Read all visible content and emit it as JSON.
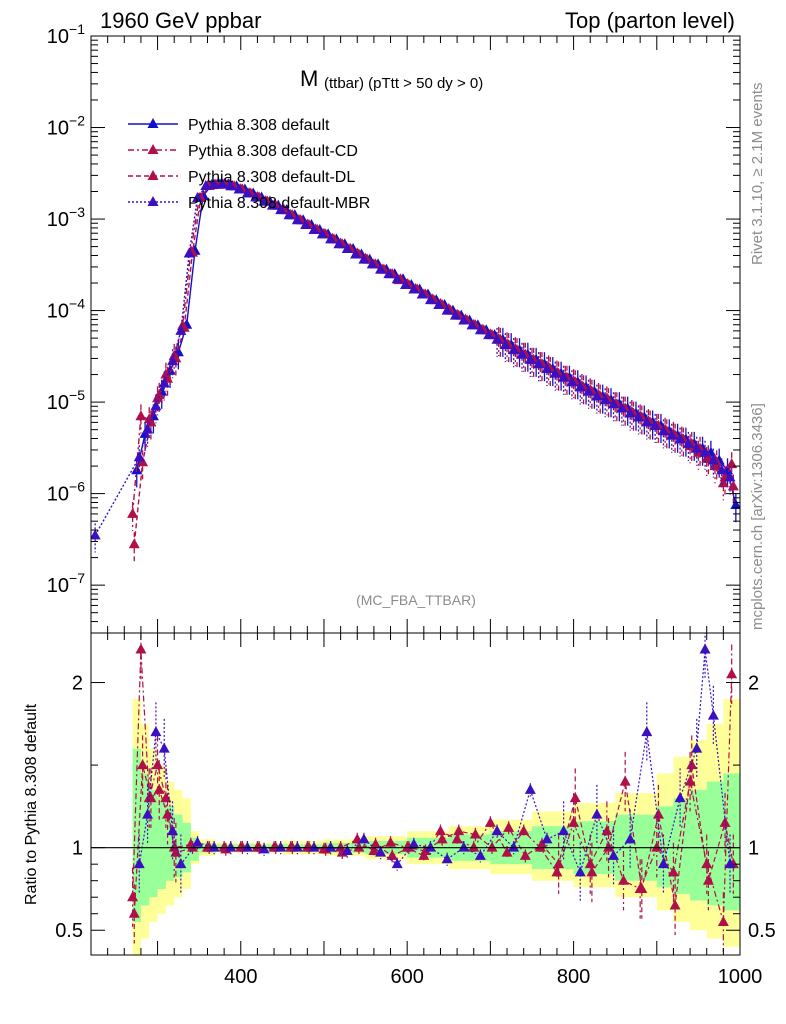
{
  "header": {
    "left": "1960 GeV ppbar",
    "right": "Top (parton level)"
  },
  "side": {
    "rivet": "Rivet 3.1.10, ≥ 2.1M events",
    "mcplots": "mcplots.cern.ch [arXiv:1306.3436]"
  },
  "colors": {
    "default": "#1010cc",
    "cd": "#b0104a",
    "dl": "#b0104a",
    "mbr": "#3a10c0",
    "band_outer": "#ffff99",
    "band_inner": "#99ff99"
  },
  "chart_data": [
    {
      "type": "line",
      "title_main": "M",
      "title_sub": "(ttbar) (pTtt > 50 dy > 0)",
      "watermark": "(MC_FBA_TTBAR)",
      "yscale": "log",
      "ylim": [
        3e-08,
        0.1
      ],
      "xlim": [
        220,
        1000
      ],
      "ytick_labels": [
        "10−1",
        "10−2",
        "10−3",
        "10−4",
        "10−5",
        "10−6",
        "10−7"
      ],
      "legend_position": "top-left",
      "series": [
        {
          "name": "Pythia 8.308 default",
          "style": "solid",
          "x": [
            275,
            285,
            295,
            305,
            315,
            325,
            335,
            345,
            355,
            365,
            375,
            385,
            395,
            405,
            415,
            425,
            435,
            445,
            455,
            465,
            475,
            485,
            495,
            505,
            515,
            525,
            535,
            545,
            555,
            565,
            575,
            585,
            595,
            605,
            615,
            625,
            635,
            645,
            655,
            665,
            675,
            685,
            695,
            705,
            715,
            725,
            735,
            745,
            755,
            765,
            775,
            785,
            795,
            805,
            815,
            825,
            835,
            845,
            855,
            865,
            875,
            885,
            895,
            905,
            915,
            925,
            935,
            945,
            955,
            965,
            975,
            985,
            995
          ],
          "y": [
            1.8e-06,
            4.5e-06,
            7e-06,
            1.3e-05,
            2.2e-05,
            3.5e-05,
            7e-05,
            0.00045,
            0.0018,
            0.00235,
            0.0024,
            0.0024,
            0.00228,
            0.0021,
            0.0019,
            0.00172,
            0.00155,
            0.0014,
            0.00125,
            0.0011,
            0.00097,
            0.00086,
            0.00076,
            0.00068,
            0.0006,
            0.00053,
            0.00047,
            0.00041,
            0.00036,
            0.00032,
            0.00028,
            0.00025,
            0.00022,
            0.00019,
            0.00017,
            0.00015,
            0.00013,
            0.000115,
            0.0001,
            8.8e-05,
            7.8e-05,
            6.9e-05,
            6.1e-05,
            5.4e-05,
            4.8e-05,
            4.2e-05,
            3.7e-05,
            3.3e-05,
            2.9e-05,
            2.6e-05,
            2.3e-05,
            2.05e-05,
            1.85e-05,
            1.65e-05,
            1.45e-05,
            1.3e-05,
            1.15e-05,
            1.05e-05,
            9.5e-06,
            8.5e-06,
            7.5e-06,
            6.8e-06,
            6e-06,
            5.5e-06,
            4.8e-06,
            4.3e-06,
            3.9e-06,
            3.5e-06,
            3.1e-06,
            2.8e-06,
            2.3e-06,
            1.8e-06,
            7.5e-07
          ]
        },
        {
          "name": "Pythia 8.308 default-CD",
          "style": "dashdot",
          "x": [
            270,
            280,
            290,
            300,
            310,
            320,
            330,
            340,
            350,
            360,
            370,
            380,
            390,
            400,
            410,
            420,
            430,
            440,
            450,
            460,
            470,
            480,
            490,
            500,
            510,
            520,
            530,
            540,
            550,
            560,
            570,
            580,
            590,
            600,
            610,
            620,
            630,
            640,
            650,
            660,
            670,
            680,
            690,
            700,
            710,
            720,
            730,
            740,
            750,
            760,
            770,
            780,
            790,
            800,
            810,
            820,
            830,
            840,
            850,
            860,
            870,
            880,
            890,
            900,
            910,
            920,
            930,
            940,
            950,
            960,
            970,
            980,
            990
          ],
          "y": [
            6e-07,
            7e-06,
            6.5e-06,
            1.1e-05,
            2e-05,
            3.2e-05,
            6.8e-05,
            0.00044,
            0.0017,
            0.0023,
            0.00238,
            0.0024,
            0.00229,
            0.00212,
            0.00192,
            0.00174,
            0.00157,
            0.00141,
            0.00126,
            0.00111,
            0.00098,
            0.00087,
            0.00077,
            0.00069,
            0.00061,
            0.00054,
            0.00047,
            0.00042,
            0.00037,
            0.00032,
            0.00028,
            0.00025,
            0.000215,
            0.000195,
            0.000172,
            0.00015,
            0.000133,
            0.000118,
            0.000104,
            9e-05,
            8e-05,
            7e-05,
            6.2e-05,
            5.5e-05,
            4.9e-05,
            4.3e-05,
            3.8e-05,
            3.3e-05,
            2.9e-05,
            2.6e-05,
            2.4e-05,
            2.1e-05,
            1.85e-05,
            1.7e-05,
            1.5e-05,
            1.35e-05,
            1.2e-05,
            1.1e-05,
            9.5e-06,
            8.5e-06,
            7.8e-06,
            7e-06,
            6.2e-06,
            5.5e-06,
            5e-06,
            4.5e-06,
            4e-06,
            3.3e-06,
            2.8e-06,
            2.4e-06,
            2e-06,
            1.3e-06,
            2.1e-06
          ]
        },
        {
          "name": "Pythia 8.308 default-DL",
          "style": "dashed",
          "x": [
            272,
            282,
            292,
            302,
            312,
            322,
            332,
            342,
            352,
            362,
            372,
            382,
            392,
            402,
            412,
            422,
            432,
            442,
            452,
            462,
            472,
            482,
            492,
            502,
            512,
            522,
            532,
            542,
            552,
            562,
            572,
            582,
            592,
            602,
            612,
            622,
            632,
            642,
            652,
            662,
            672,
            682,
            692,
            702,
            712,
            722,
            732,
            742,
            752,
            762,
            772,
            782,
            792,
            802,
            812,
            822,
            832,
            842,
            852,
            862,
            872,
            882,
            892,
            902,
            912,
            922,
            932,
            942,
            952,
            962,
            972,
            982,
            992
          ],
          "y": [
            2.8e-07,
            2.2e-06,
            6e-06,
            1.2e-05,
            1.8e-05,
            3e-05,
            6.5e-05,
            0.00043,
            0.0017,
            0.0023,
            0.00238,
            0.00238,
            0.00228,
            0.0021,
            0.0019,
            0.00172,
            0.00155,
            0.0014,
            0.00125,
            0.0011,
            0.00097,
            0.00086,
            0.00076,
            0.00068,
            0.0006,
            0.00053,
            0.00047,
            0.00041,
            0.00036,
            0.00032,
            0.00028,
            0.00025,
            0.00022,
            0.00019,
            0.00017,
            0.00015,
            0.00013,
            0.000115,
            0.0001,
            8.8e-05,
            7.8e-05,
            6.9e-05,
            6.1e-05,
            5.4e-05,
            4.8e-05,
            4.2e-05,
            3.7e-05,
            3.3e-05,
            2.9e-05,
            2.6e-05,
            2.3e-05,
            2.05e-05,
            1.85e-05,
            1.65e-05,
            1.45e-05,
            1.3e-05,
            1.15e-05,
            1.05e-05,
            9.5e-06,
            8.5e-06,
            7.5e-06,
            6.8e-06,
            6e-06,
            5.5e-06,
            4.8e-06,
            4.3e-06,
            3.9e-06,
            3.5e-06,
            3.1e-06,
            2.5e-06,
            2.2e-06,
            1.5e-06,
            1.2e-06
          ]
        },
        {
          "name": "Pythia 8.308 default-MBR",
          "style": "dotted",
          "x": [
            225,
            278,
            288,
            298,
            308,
            318,
            328,
            338,
            348,
            358,
            368,
            378,
            388,
            398,
            408,
            418,
            428,
            438,
            448,
            458,
            468,
            478,
            488,
            498,
            508,
            518,
            528,
            538,
            548,
            558,
            568,
            578,
            588,
            598,
            608,
            618,
            628,
            638,
            648,
            658,
            668,
            678,
            688,
            698,
            708,
            718,
            728,
            738,
            748,
            758,
            768,
            778,
            788,
            798,
            808,
            818,
            828,
            838,
            848,
            858,
            868,
            878,
            888,
            898,
            908,
            918,
            928,
            938,
            948,
            958,
            968,
            978,
            988
          ],
          "y": [
            3.5e-07,
            2.5e-06,
            5e-06,
            9e-06,
            1.6e-05,
            2.8e-05,
            6e-05,
            0.00042,
            0.0017,
            0.0023,
            0.00236,
            0.00238,
            0.00228,
            0.0021,
            0.0019,
            0.00172,
            0.00155,
            0.0014,
            0.00125,
            0.0011,
            0.00097,
            0.00086,
            0.00076,
            0.00068,
            0.0006,
            0.00053,
            0.00047,
            0.00041,
            0.00036,
            0.00032,
            0.00028,
            0.00025,
            0.00022,
            0.00019,
            0.00017,
            0.00015,
            0.00013,
            0.000115,
            0.0001,
            8.8e-05,
            7.8e-05,
            6.9e-05,
            6.1e-05,
            5.4e-05,
            4.8e-05,
            4.2e-05,
            3.7e-05,
            3.3e-05,
            2.9e-05,
            2.6e-05,
            2.3e-05,
            2.05e-05,
            1.85e-05,
            1.65e-05,
            1.45e-05,
            1.3e-05,
            1.15e-05,
            1.05e-05,
            9.5e-06,
            8.5e-06,
            7.5e-06,
            6.8e-06,
            6e-06,
            5.5e-06,
            4.8e-06,
            4.3e-06,
            3.9e-06,
            3.5e-06,
            3.1e-06,
            2.8e-06,
            2.3e-06,
            1.8e-06,
            1.5e-06
          ]
        }
      ]
    },
    {
      "type": "line",
      "ylabel": "Ratio to Pythia 8.308 default",
      "ylim": [
        0.35,
        2.3
      ],
      "xlim": [
        220,
        1000
      ],
      "xtick_labels": [
        "400",
        "600",
        "800",
        "1000"
      ],
      "ytick_labels": [
        "0.5",
        "1",
        "2"
      ],
      "reference_line": 1,
      "band": {
        "x": [
          270,
          280,
          290,
          300,
          310,
          320,
          330,
          340,
          350,
          370,
          400,
          450,
          500,
          550,
          600,
          650,
          700,
          750,
          800,
          850,
          900,
          920,
          940,
          960,
          980,
          1000
        ],
        "inner_lo": [
          0.55,
          0.65,
          0.7,
          0.75,
          0.8,
          0.82,
          0.85,
          0.92,
          0.97,
          0.98,
          0.98,
          0.98,
          0.97,
          0.96,
          0.94,
          0.92,
          0.9,
          0.87,
          0.84,
          0.8,
          0.76,
          0.72,
          0.68,
          0.65,
          0.62,
          0.6
        ],
        "inner_hi": [
          1.6,
          1.45,
          1.35,
          1.3,
          1.25,
          1.2,
          1.15,
          1.06,
          1.03,
          1.02,
          1.02,
          1.02,
          1.03,
          1.04,
          1.06,
          1.08,
          1.1,
          1.13,
          1.16,
          1.2,
          1.25,
          1.3,
          1.35,
          1.4,
          1.45,
          1.5
        ],
        "outer_lo": [
          0.35,
          0.45,
          0.55,
          0.6,
          0.65,
          0.7,
          0.75,
          0.9,
          0.95,
          0.97,
          0.97,
          0.96,
          0.95,
          0.93,
          0.9,
          0.87,
          0.84,
          0.8,
          0.76,
          0.7,
          0.62,
          0.55,
          0.5,
          0.45,
          0.4,
          0.37
        ],
        "outer_hi": [
          1.9,
          1.75,
          1.6,
          1.5,
          1.4,
          1.35,
          1.3,
          1.1,
          1.05,
          1.03,
          1.03,
          1.04,
          1.05,
          1.07,
          1.1,
          1.13,
          1.17,
          1.22,
          1.27,
          1.33,
          1.45,
          1.55,
          1.65,
          1.75,
          1.9,
          2.1
        ]
      },
      "series": [
        {
          "name": "Pythia 8.308 default-CD",
          "x": [
            270,
            280,
            290,
            300,
            310,
            320,
            340,
            360,
            380,
            400,
            420,
            440,
            460,
            480,
            500,
            520,
            540,
            560,
            580,
            600,
            620,
            640,
            660,
            680,
            700,
            720,
            740,
            760,
            780,
            800,
            820,
            840,
            860,
            880,
            900,
            920,
            940,
            960,
            980,
            990
          ],
          "y": [
            0.7,
            2.2,
            1.3,
            1.5,
            1.3,
            1.0,
            1.02,
            1.0,
            1.0,
            1.0,
            1.0,
            1.0,
            1.0,
            1.0,
            0.99,
            1.0,
            1.05,
            0.98,
            1.03,
            1.0,
            0.95,
            1.1,
            1.05,
            1.0,
            1.15,
            0.97,
            1.1,
            1.0,
            0.85,
            1.15,
            0.9,
            1.1,
            0.8,
            0.75,
            1.0,
            0.85,
            1.4,
            0.9,
            0.55,
            2.05
          ]
        },
        {
          "name": "Pythia 8.308 default-DL",
          "x": [
            272,
            282,
            292,
            302,
            312,
            322,
            342,
            362,
            382,
            402,
            422,
            442,
            462,
            482,
            502,
            522,
            542,
            562,
            582,
            602,
            622,
            642,
            662,
            682,
            702,
            722,
            742,
            762,
            782,
            802,
            822,
            842,
            862,
            882,
            902,
            922,
            942,
            962,
            982,
            992
          ],
          "y": [
            0.6,
            1.5,
            1.3,
            1.35,
            1.2,
            0.97,
            1.0,
            1.0,
            0.99,
            1.0,
            1.0,
            1.0,
            1.0,
            1.0,
            0.99,
            0.97,
            1.0,
            1.02,
            0.95,
            1.0,
            0.98,
            1.05,
            1.1,
            1.08,
            1.0,
            1.12,
            0.95,
            1.02,
            0.9,
            1.3,
            0.85,
            1.0,
            1.4,
            0.75,
            1.2,
            0.65,
            1.5,
            0.8,
            1.15,
            0.9
          ]
        },
        {
          "name": "Pythia 8.308 default-MBR",
          "x": [
            278,
            288,
            298,
            308,
            318,
            328,
            348,
            368,
            388,
            408,
            428,
            448,
            468,
            488,
            508,
            528,
            548,
            568,
            588,
            608,
            628,
            648,
            668,
            688,
            708,
            728,
            748,
            768,
            788,
            808,
            828,
            848,
            868,
            888,
            908,
            928,
            948,
            958,
            968,
            988
          ],
          "y": [
            0.9,
            1.2,
            1.7,
            1.6,
            1.1,
            0.9,
            1.03,
            1.0,
            1.0,
            1.0,
            0.99,
            1.0,
            1.0,
            1.0,
            1.0,
            0.98,
            1.05,
            0.97,
            0.9,
            1.02,
            1.0,
            0.93,
            1.0,
            0.95,
            1.1,
            1.0,
            1.35,
            1.05,
            1.1,
            0.85,
            1.2,
            0.95,
            1.05,
            1.7,
            0.9,
            1.3,
            1.6,
            2.2,
            1.8,
            0.9
          ]
        }
      ]
    }
  ]
}
